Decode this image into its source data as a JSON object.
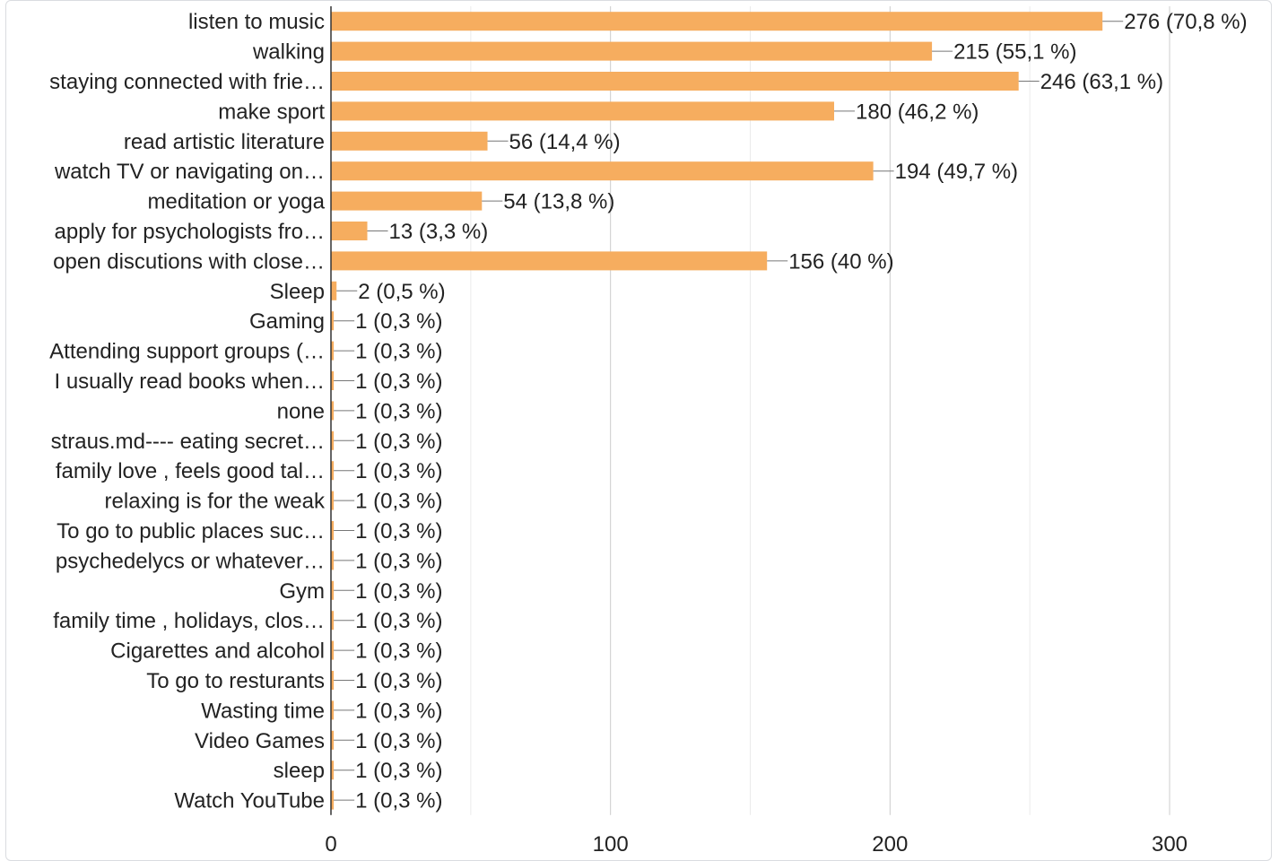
{
  "chart_data": {
    "type": "bar",
    "orientation": "horizontal",
    "title": "",
    "xlabel": "",
    "ylabel": "",
    "xlim": [
      0,
      300
    ],
    "x_ticks": [
      0,
      100,
      200,
      300
    ],
    "grid": true,
    "legend": "none",
    "bar_color": "#f6ad5f",
    "categories": [
      "listen to music",
      "walking",
      "staying connected with frie…",
      "make sport",
      "read artistic literature",
      "watch TV or navigating on…",
      "meditation or yoga",
      "apply for psychologists fro…",
      "open discutions with close…",
      "Sleep",
      "Gaming",
      "Attending support groups (…",
      "I usually read books when…",
      "none",
      "straus.md---- eating secret…",
      "family love , feels good tal…",
      "relaxing is for the weak",
      "To go to public places suc…",
      "psychedelycs or whatever…",
      "Gym",
      "family time , holidays, clos…",
      "Cigarettes and alcohol",
      "To go to resturants",
      "Wasting time",
      "Video Games",
      "sleep",
      "Watch YouTube"
    ],
    "values": [
      276,
      215,
      246,
      180,
      56,
      194,
      54,
      13,
      156,
      2,
      1,
      1,
      1,
      1,
      1,
      1,
      1,
      1,
      1,
      1,
      1,
      1,
      1,
      1,
      1,
      1,
      1
    ],
    "data_labels": [
      "276 (70,8 %)",
      "215 (55,1 %)",
      "246 (63,1 %)",
      "180 (46,2 %)",
      "56 (14,4 %)",
      "194 (49,7 %)",
      "54 (13,8 %)",
      "13 (3,3 %)",
      "156 (40 %)",
      "2 (0,5 %)",
      "1 (0,3 %)",
      "1 (0,3 %)",
      "1 (0,3 %)",
      "1 (0,3 %)",
      "1 (0,3 %)",
      "1 (0,3 %)",
      "1 (0,3 %)",
      "1 (0,3 %)",
      "1 (0,3 %)",
      "1 (0,3 %)",
      "1 (0,3 %)",
      "1 (0,3 %)",
      "1 (0,3 %)",
      "1 (0,3 %)",
      "1 (0,3 %)",
      "1 (0,3 %)",
      "1 (0,3 %)"
    ]
  }
}
